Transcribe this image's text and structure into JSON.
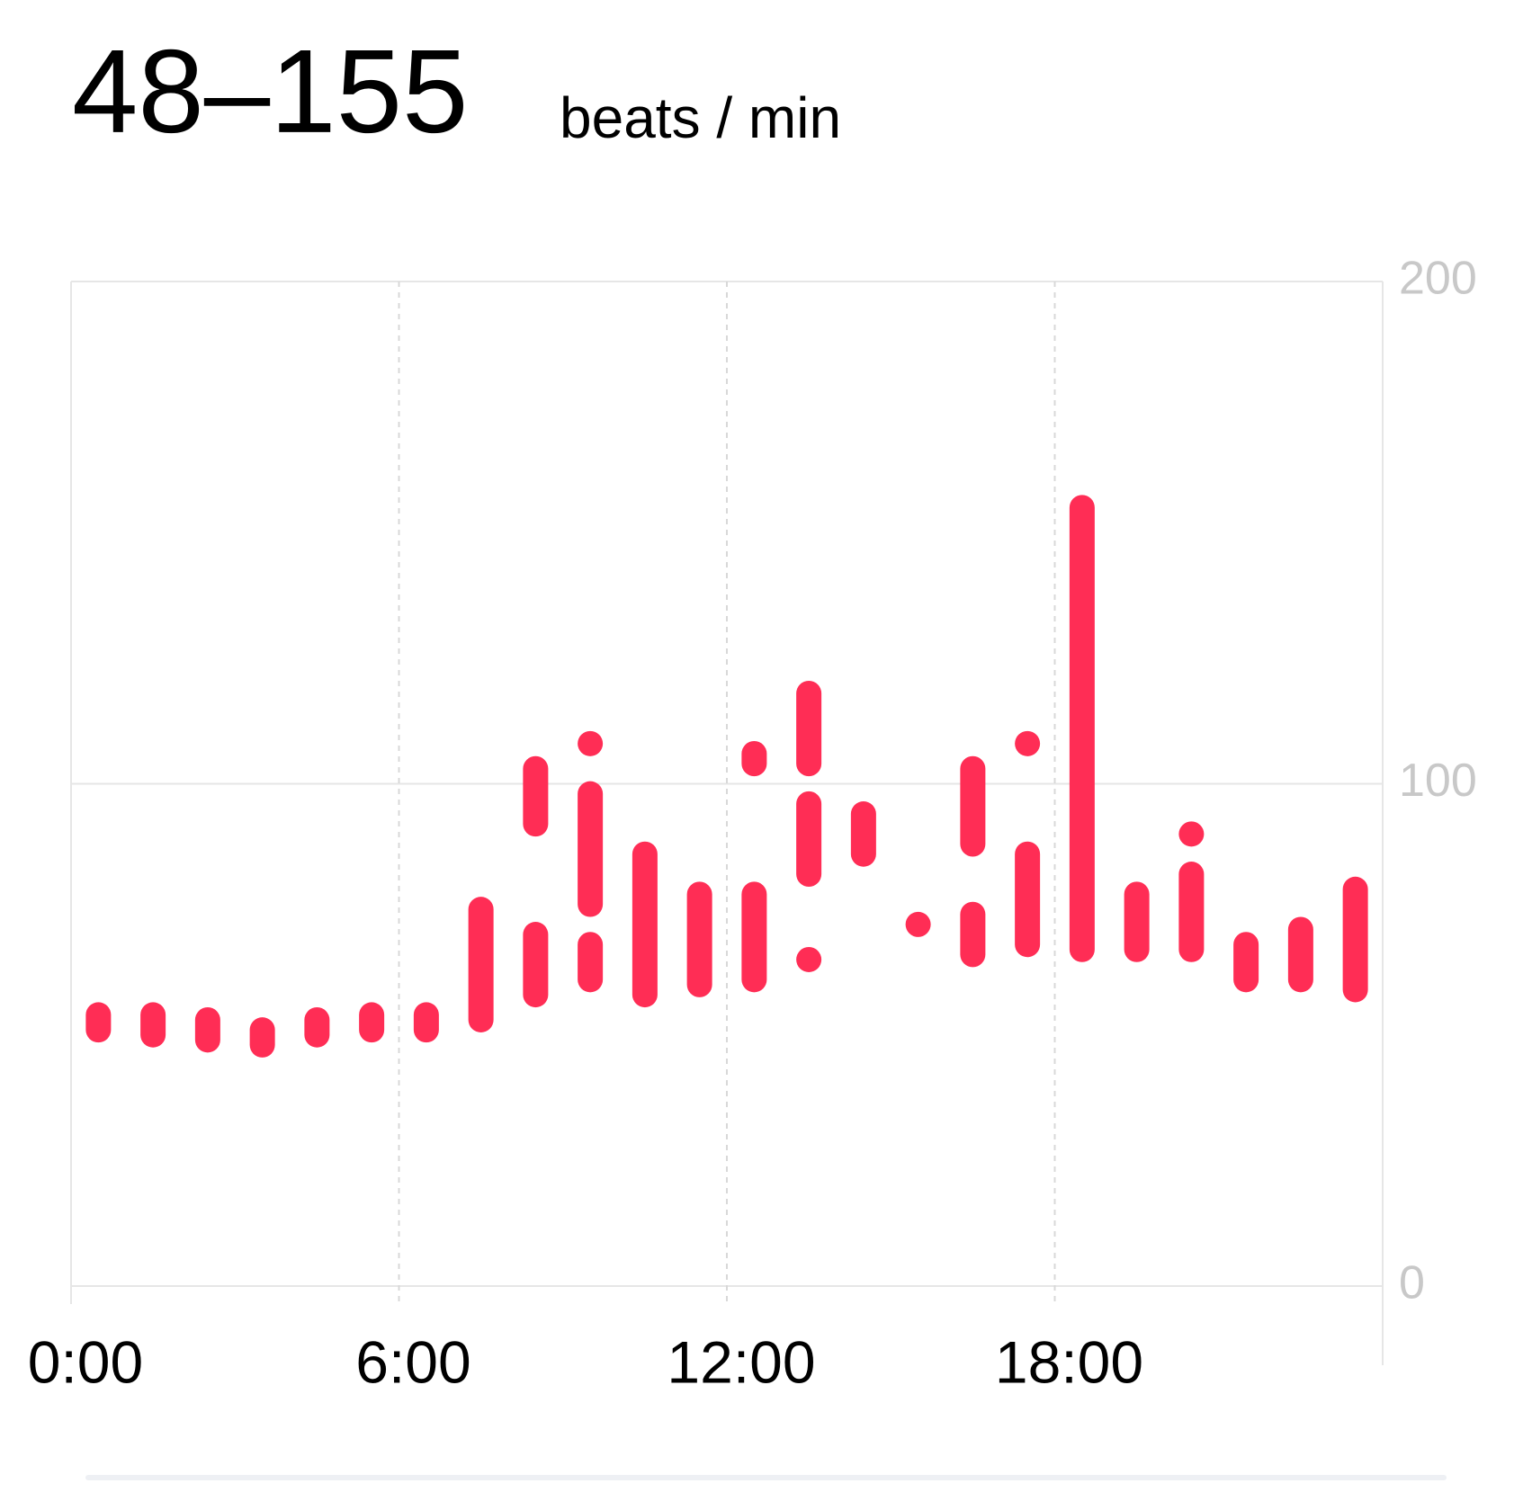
{
  "chart_data": {
    "type": "range",
    "title": "48–155",
    "unit": "beats / min",
    "x": [
      0.5,
      1.5,
      2.5,
      3.5,
      4.5,
      5.5,
      6.5,
      7.5,
      8.5,
      8.5,
      9.5,
      9.5,
      9.5,
      10.5,
      11.5,
      12.5,
      12.5,
      13.5,
      13.5,
      13.5,
      14.5,
      15.5,
      16.5,
      16.5,
      17.5,
      17.5,
      18.5,
      19.5,
      20.5,
      20.5,
      21.5,
      22.5,
      23.5
    ],
    "low": [
      51,
      50,
      49,
      48,
      50,
      51,
      51,
      53,
      92,
      58,
      108,
      76,
      61,
      58,
      60,
      104,
      61,
      104,
      82,
      65,
      86,
      72,
      88,
      66,
      108,
      68,
      67,
      67,
      90,
      67,
      61,
      61,
      59
    ],
    "high": [
      54,
      54,
      53,
      51,
      53,
      54,
      54,
      75,
      103,
      70,
      108,
      98,
      68,
      86,
      78,
      106,
      78,
      118,
      96,
      65,
      94,
      72,
      103,
      74,
      108,
      86,
      155,
      78,
      90,
      82,
      68,
      71,
      79
    ],
    "color": "#ff2d55",
    "xlim": [
      0,
      24
    ],
    "xticks": [
      {
        "value": 0,
        "label": "0:00"
      },
      {
        "value": 6,
        "label": "6:00"
      },
      {
        "value": 12,
        "label": "12:00"
      },
      {
        "value": 18,
        "label": "18:00"
      }
    ],
    "ylim": [
      0,
      200
    ],
    "yticks": [
      0,
      100,
      200
    ],
    "grid": true
  }
}
